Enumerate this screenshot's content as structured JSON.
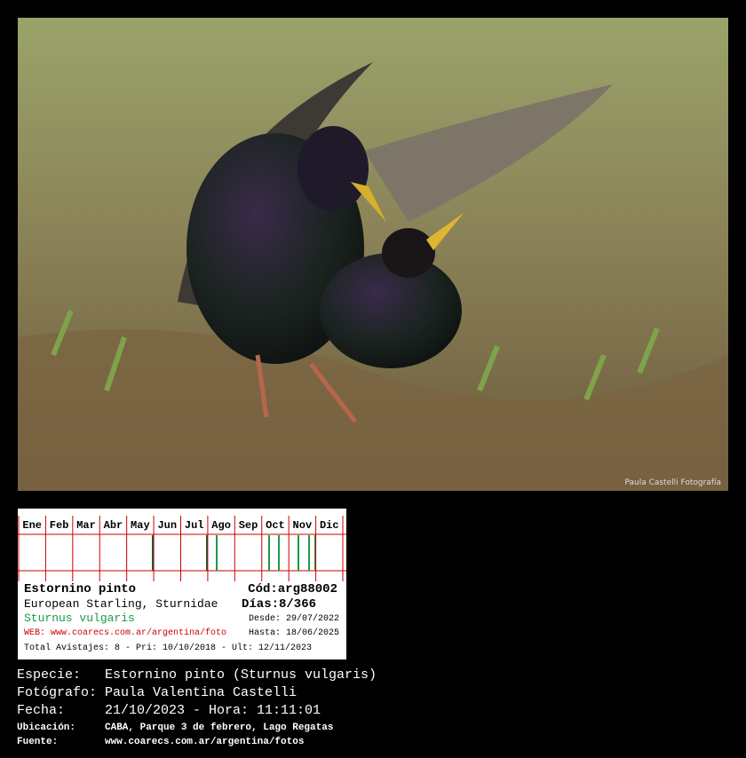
{
  "photo": {
    "credit": "Paula Castelli Fotografía"
  },
  "card": {
    "months": [
      "Ene",
      "Feb",
      "Mar",
      "Abr",
      "May",
      "Jun",
      "Jul",
      "Ago",
      "Sep",
      "Oct",
      "Nov",
      "Dic"
    ],
    "name": "Estornino pinto",
    "code": "Cód:arg88002",
    "english": "European Starling, Sturnidae",
    "days": "Días:8/366",
    "scientific": "Sturnus vulgaris",
    "since": "Desde: 29/07/2022",
    "web": "WEB: www.coarecs.com.ar/argentina/foto",
    "until": "Hasta: 18/06/2025",
    "total": "Total Avistajes: 8 - Pri: 10/10/2018 - Ult: 12/11/2023"
  },
  "info": [
    {
      "label": "Especie:",
      "value": "Estornino pinto (Sturnus vulgaris)"
    },
    {
      "label": "Fotógrafo:",
      "value": "Paula Valentina Castelli"
    },
    {
      "label": "Fecha:",
      "value": "21/10/2023 - Hora: 11:11:01"
    },
    {
      "label": "Ubicación:",
      "value": "CABA, Parque 3 de febrero, Lago Regatas"
    },
    {
      "label": "Fuente:",
      "value": "www.coarecs.com.ar/argentina/fotos"
    }
  ]
}
